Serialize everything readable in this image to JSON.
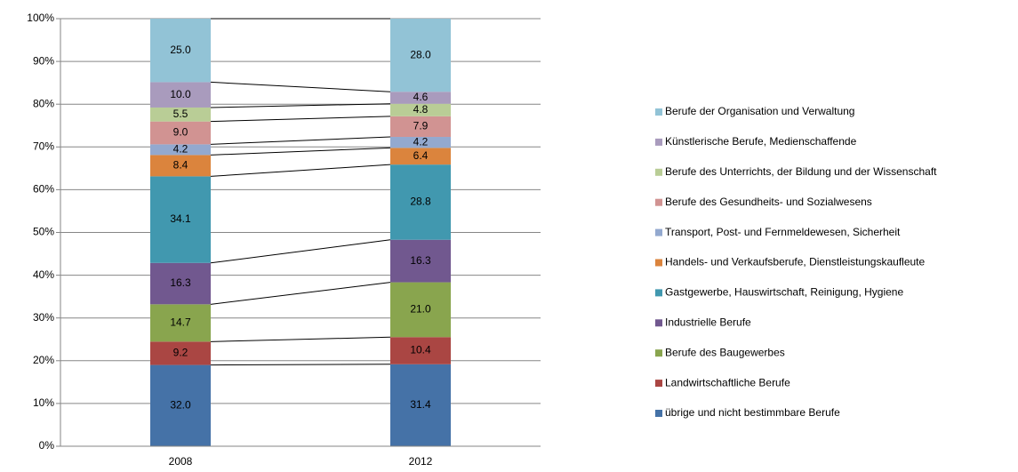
{
  "chart_data": {
    "type": "bar",
    "stacked": "percent",
    "categories": [
      "2008",
      "2012"
    ],
    "ylim": [
      0,
      100
    ],
    "yticks": [
      {
        "value": 0,
        "label": "0%"
      },
      {
        "value": 10,
        "label": "10%"
      },
      {
        "value": 20,
        "label": "20%"
      },
      {
        "value": 30,
        "label": "30%"
      },
      {
        "value": 40,
        "label": "40%"
      },
      {
        "value": 50,
        "label": "50%"
      },
      {
        "value": 60,
        "label": "60%"
      },
      {
        "value": 70,
        "label": "70%"
      },
      {
        "value": 80,
        "label": "80%"
      },
      {
        "value": 90,
        "label": "90%"
      },
      {
        "value": 100,
        "label": "100%"
      }
    ],
    "grid": true,
    "legend": "right",
    "series": [
      {
        "name": "übrige und nicht bestimmbare Berufe",
        "color": "#4572a7",
        "values": [
          32.0,
          31.4
        ],
        "value_labels": [
          "32.0",
          "31.4"
        ]
      },
      {
        "name": "Landwirtschaftliche Berufe",
        "color": "#aa4643",
        "values": [
          9.2,
          10.4
        ],
        "value_labels": [
          "9.2",
          "10.4"
        ]
      },
      {
        "name": "Berufe des Baugewerbes",
        "color": "#89a54e",
        "values": [
          14.7,
          21.0
        ],
        "value_labels": [
          "14.7",
          "21.0"
        ]
      },
      {
        "name": "Industrielle Berufe",
        "color": "#71588f",
        "values": [
          16.3,
          16.3
        ],
        "value_labels": [
          "16.3",
          "16.3"
        ]
      },
      {
        "name": "Gastgewerbe, Hauswirtschaft, Reinigung, Hygiene",
        "color": "#4198af",
        "values": [
          34.1,
          28.8
        ],
        "value_labels": [
          "34.1",
          "28.8"
        ]
      },
      {
        "name": "Handels- und Verkaufsberufe, Dienstleistungskaufleute",
        "color": "#db843d",
        "values": [
          8.4,
          6.4
        ],
        "value_labels": [
          "8.4",
          "6.4"
        ]
      },
      {
        "name": "Transport, Post- und Fernmeldewesen, Sicherheit",
        "color": "#93a9cf",
        "values": [
          4.2,
          4.2
        ],
        "value_labels": [
          "4.2",
          "4.2"
        ]
      },
      {
        "name": "Berufe des Gesundheits- und Sozialwesens",
        "color": "#d19392",
        "values": [
          9.0,
          7.9
        ],
        "value_labels": [
          "9.0",
          "7.9"
        ]
      },
      {
        "name": "Berufe des Unterrichts, der Bildung und der Wissenschaft",
        "color": "#b9cd96",
        "values": [
          5.5,
          4.8
        ],
        "value_labels": [
          "5.5",
          "4.8"
        ]
      },
      {
        "name": "Künstlerische Berufe, Medienschaffende",
        "color": "#a99bbd",
        "values": [
          10.0,
          4.6
        ],
        "value_labels": [
          "10.0",
          "4.6"
        ]
      },
      {
        "name": "Berufe der Organisation und Verwaltung",
        "color": "#92c3d6",
        "values": [
          25.0,
          28.0
        ],
        "value_labels": [
          "25.0",
          "28.0"
        ]
      }
    ]
  }
}
